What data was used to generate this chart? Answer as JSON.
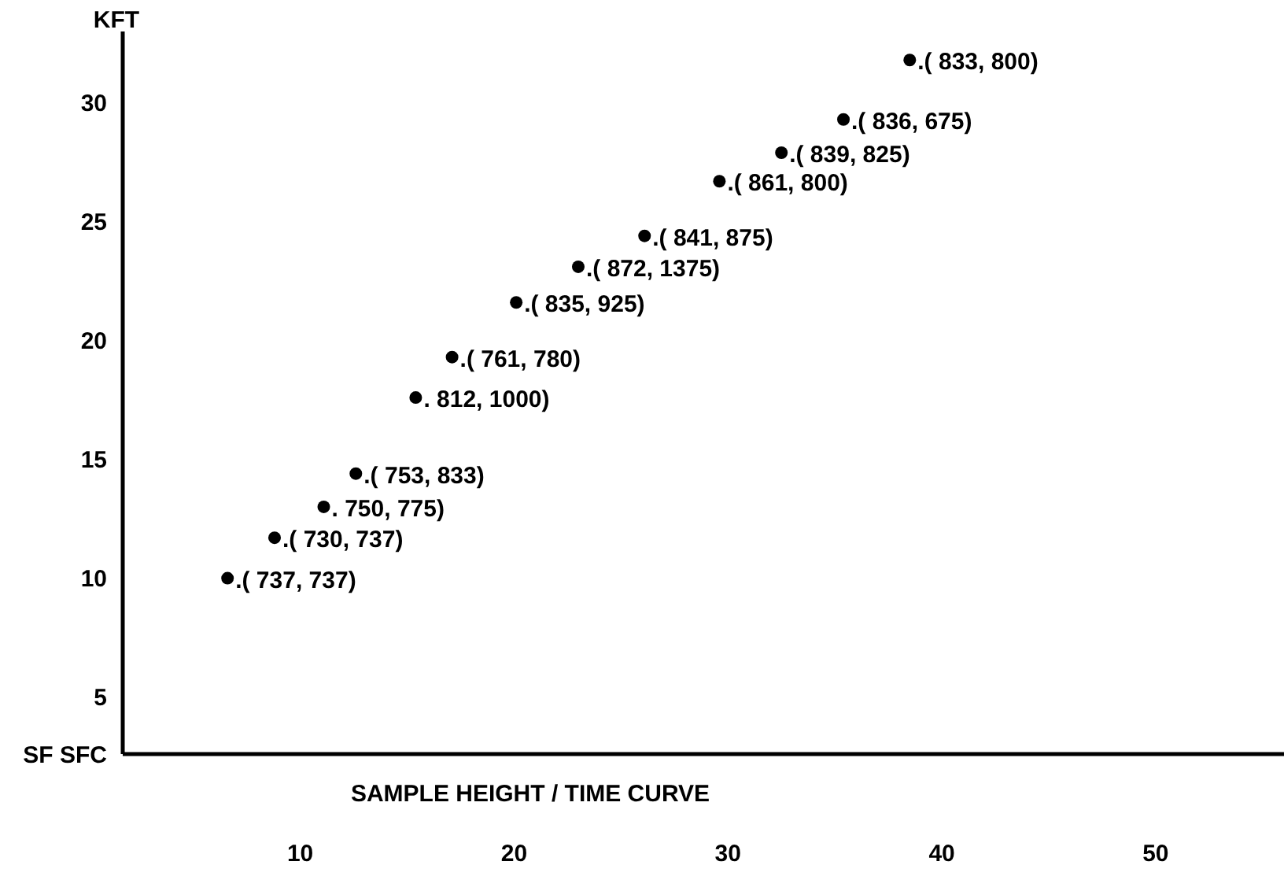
{
  "chart_data": {
    "type": "scatter",
    "ylabel": "KFT",
    "xlabel": "SAMPLE HEIGHT / TIME CURVE",
    "x": [
      6.6,
      8.8,
      11.1,
      12.6,
      15.4,
      17.1,
      20.1,
      23.0,
      26.1,
      29.6,
      32.5,
      35.4,
      38.5
    ],
    "series": [
      {
        "color": "#000000",
        "values": [
          10.0,
          11.7,
          13.0,
          14.4,
          17.6,
          19.3,
          21.6,
          23.1,
          24.4,
          26.7,
          27.9,
          29.3,
          31.8
        ]
      }
    ],
    "marker": "circle",
    "xlim": [
      1.7,
      56
    ],
    "xticks": [
      10,
      20,
      30,
      40,
      50
    ],
    "ylim": [
      2.6,
      33
    ],
    "yticks": [
      {
        "value": 2.6,
        "label": "SF SFC"
      },
      5,
      10,
      15,
      20,
      25,
      30
    ],
    "annotations": [
      {
        "text": ".( 737, 737)",
        "x": 6.6,
        "y": 10.0
      },
      {
        "text": ".( 730, 737)",
        "x": 8.8,
        "y": 11.7
      },
      {
        "text": ". 750, 775)",
        "x": 11.1,
        "y": 13.0
      },
      {
        "text": ".( 753, 833)",
        "x": 12.6,
        "y": 14.4
      },
      {
        "text": ". 812, 1000)",
        "x": 15.4,
        "y": 17.6
      },
      {
        "text": ".( 761, 780)",
        "x": 17.1,
        "y": 19.3
      },
      {
        "text": ".( 835, 925)",
        "x": 20.1,
        "y": 21.6
      },
      {
        "text": ".( 872, 1375)",
        "x": 23.0,
        "y": 23.1
      },
      {
        "text": ".( 841, 875)",
        "x": 26.1,
        "y": 24.4
      },
      {
        "text": ".( 861, 800)",
        "x": 29.6,
        "y": 26.7
      },
      {
        "text": ".( 839, 825)",
        "x": 32.5,
        "y": 27.9
      },
      {
        "text": ".( 836, 675)",
        "x": 35.4,
        "y": 29.3
      },
      {
        "text": ".( 833, 800)",
        "x": 38.5,
        "y": 31.8
      }
    ]
  }
}
